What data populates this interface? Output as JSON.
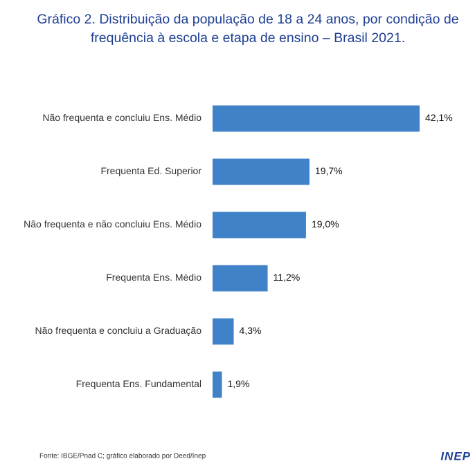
{
  "chart_data": {
    "type": "bar",
    "orientation": "horizontal",
    "title": [
      "Gráfico 2. Distribuição da população de 18 a 24 anos, por condição de",
      "frequência à escola e etapa de ensino – Brasil 2021."
    ],
    "categories": [
      "Não frequenta e concluiu Ens. Médio",
      "Frequenta Ed. Superior",
      "Não frequenta e não concluiu Ens. Médio",
      "Frequenta Ens. Médio",
      "Não frequenta e concluiu a Graduação",
      "Frequenta Ens. Fundamental"
    ],
    "values": [
      42.1,
      19.7,
      19.0,
      11.2,
      4.3,
      1.9
    ],
    "value_labels": [
      "42,1%",
      "19,7%",
      "19,0%",
      "11,2%",
      "4,3%",
      "1,9%"
    ],
    "color": "#3f82c7",
    "source": "Fonte: IBGE/Pnad C; gráfico elaborado por Deed/Inep",
    "logo": "INEP"
  }
}
